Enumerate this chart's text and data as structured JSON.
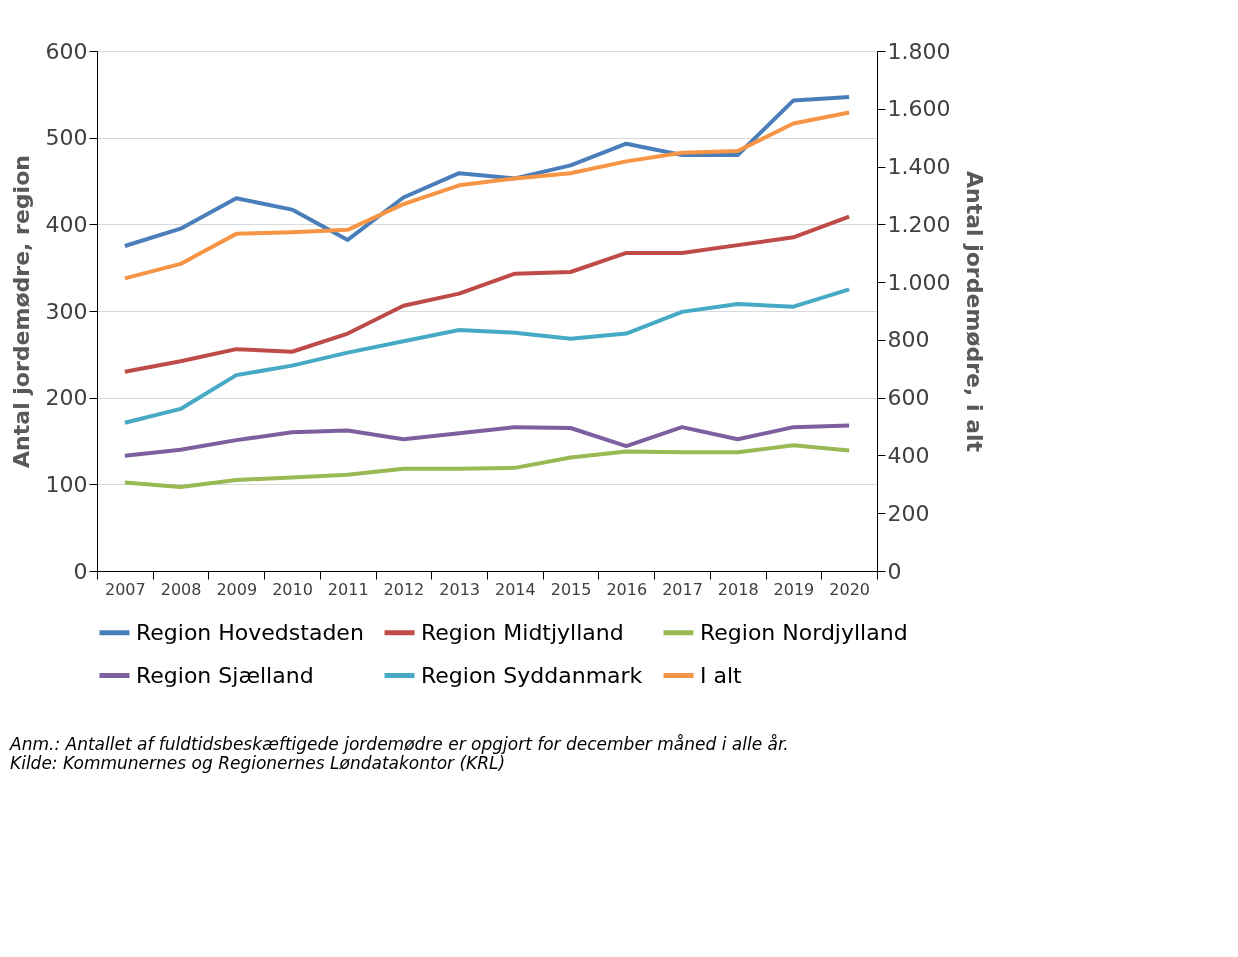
{
  "chart_data": {
    "type": "line",
    "categories": [
      "2007",
      "2008",
      "2009",
      "2010",
      "2011",
      "2012",
      "2013",
      "2014",
      "2015",
      "2016",
      "2017",
      "2018",
      "2019",
      "2020"
    ],
    "ylabel": "Antal jordemødre, region",
    "y2label": "Antal jordemødre, i alt",
    "ylim": [
      0,
      600
    ],
    "yticks": [
      0,
      100,
      200,
      300,
      400,
      500,
      600
    ],
    "y2lim": [
      0,
      1800
    ],
    "y2ticks": [
      {
        "value": 0,
        "label": "0"
      },
      {
        "value": 200,
        "label": "200"
      },
      {
        "value": 400,
        "label": "400"
      },
      {
        "value": 600,
        "label": "600"
      },
      {
        "value": 800,
        "label": "800"
      },
      {
        "value": 1000,
        "label": "1.000"
      },
      {
        "value": 1200,
        "label": "1.200"
      },
      {
        "value": 1400,
        "label": "1.400"
      },
      {
        "value": 1600,
        "label": "1.600"
      },
      {
        "value": 1800,
        "label": "1.800"
      }
    ],
    "grid": "y",
    "legend": "bottom",
    "marker": "none",
    "line_style": "solid",
    "series": [
      {
        "name": "Region Hovedstaden",
        "color": "#4a7ebb",
        "values": [
          375,
          395,
          430,
          417,
          382,
          431,
          459,
          453,
          468,
          493,
          480,
          480,
          543,
          547
        ]
      },
      {
        "name": "Region Midtjylland",
        "color": "#be4b48",
        "values": [
          230,
          242,
          256,
          253,
          274,
          306,
          320,
          343,
          345,
          367,
          367,
          376,
          385,
          409
        ]
      },
      {
        "name": "Region Nordjylland",
        "color": "#98b954",
        "values": [
          102,
          97,
          105,
          108,
          111,
          118,
          118,
          119,
          131,
          138,
          137,
          137,
          145,
          139
        ]
      },
      {
        "name": "Region Sjælland",
        "color": "#7d5fa0",
        "values": [
          133,
          140,
          151,
          160,
          162,
          152,
          159,
          166,
          165,
          144,
          166,
          152,
          166,
          168
        ]
      },
      {
        "name": "Region Syddanmark",
        "color": "#46aac5",
        "values": [
          171,
          187,
          226,
          237,
          252,
          265,
          278,
          275,
          268,
          274,
          299,
          308,
          305,
          325
        ]
      },
      {
        "name": "I alt",
        "color": "#f69545",
        "axis": "y2",
        "values": [
          1013,
          1063,
          1167,
          1173,
          1181,
          1270,
          1335,
          1359,
          1377,
          1418,
          1448,
          1454,
          1549,
          1587
        ]
      }
    ],
    "annotations": [
      "Anm.: Antallet af fuldtidsbeskæftigede jordemødre er opgjort for december måned i alle år.",
      "Kilde: Kommunernes og Regionernes Løndatakontor (KRL)"
    ]
  }
}
